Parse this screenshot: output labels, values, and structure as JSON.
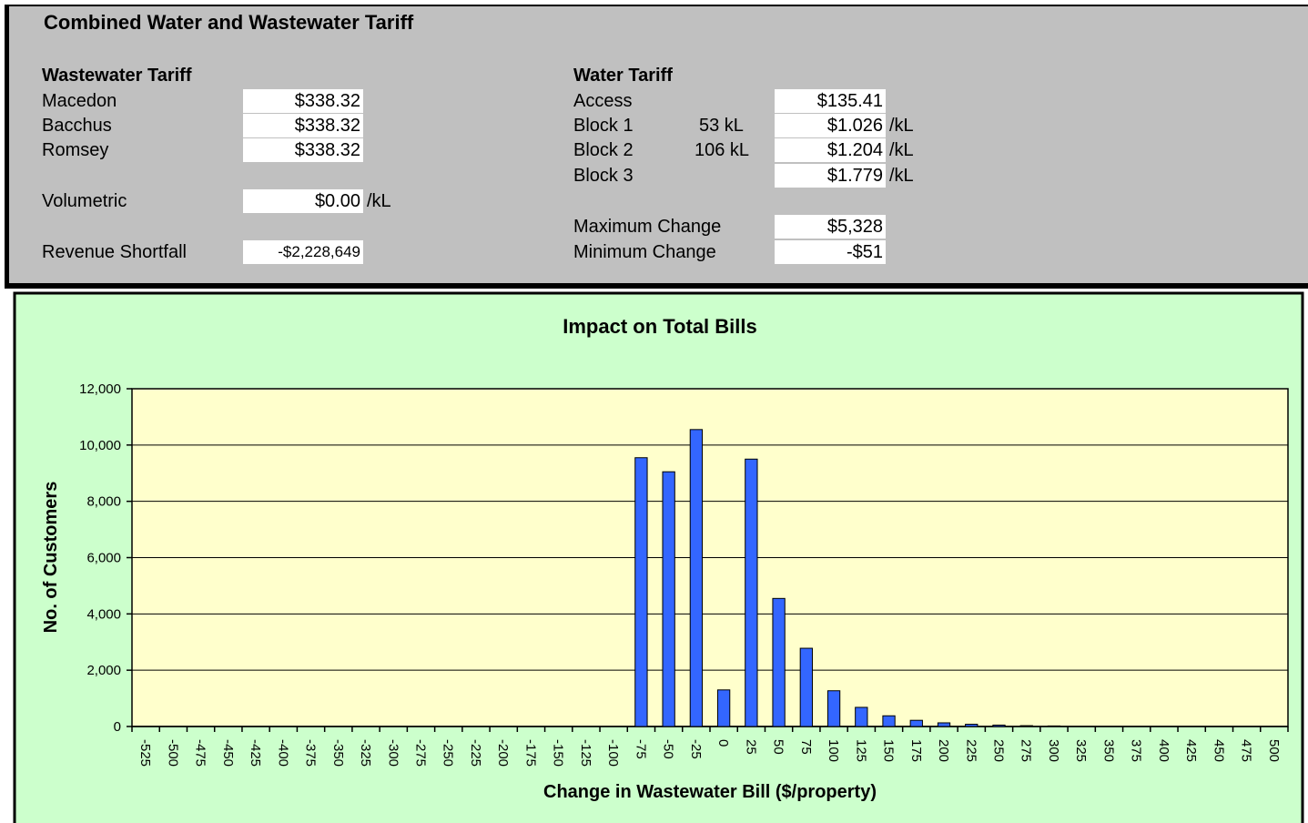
{
  "panel": {
    "title": "Combined Water and Wastewater Tariff",
    "wastewater": {
      "heading": "Wastewater Tariff",
      "rows": [
        {
          "label": "Macedon",
          "value": "$338.32"
        },
        {
          "label": "Bacchus",
          "value": "$338.32"
        },
        {
          "label": "Romsey",
          "value": "$338.32"
        }
      ],
      "volumetric": {
        "label": "Volumetric",
        "value": "$0.00",
        "unit": "/kL"
      },
      "shortfall": {
        "label": "Revenue Shortfall",
        "value": "-$2,228,649"
      }
    },
    "water": {
      "heading": "Water Tariff",
      "access": {
        "label": "Access",
        "value": "$135.41"
      },
      "blocks": [
        {
          "label": "Block 1",
          "size": "53 kL",
          "value": "$1.026",
          "unit": "/kL"
        },
        {
          "label": "Block 2",
          "size": "106 kL",
          "value": "$1.204",
          "unit": "/kL"
        },
        {
          "label": "Block 3",
          "value": "$1.779",
          "unit": "/kL"
        }
      ],
      "max_change": {
        "label": "Maximum Change",
        "value": "$5,328"
      },
      "min_change": {
        "label": "Minimum Change",
        "value": "-$51"
      }
    }
  },
  "chart_data": {
    "type": "bar",
    "title": "Impact on Total Bills",
    "x_label": "Change in Wastewater Bill ($/property)",
    "y_label": "No. of Customers",
    "categories": [
      "-525",
      "-500",
      "-475",
      "-450",
      "-425",
      "-400",
      "-375",
      "-350",
      "-325",
      "-300",
      "-275",
      "-250",
      "-225",
      "-200",
      "-175",
      "-150",
      "-125",
      "-100",
      "-75",
      "-50",
      "-25",
      "0",
      "25",
      "50",
      "75",
      "100",
      "125",
      "150",
      "175",
      "200",
      "225",
      "250",
      "275",
      "300",
      "325",
      "350",
      "375",
      "400",
      "425",
      "450",
      "475",
      "500"
    ],
    "values": [
      0,
      0,
      0,
      0,
      0,
      0,
      0,
      0,
      0,
      0,
      0,
      0,
      0,
      0,
      0,
      0,
      0,
      0,
      9550,
      9050,
      10550,
      1300,
      9500,
      4550,
      2780,
      1270,
      680,
      380,
      220,
      130,
      80,
      50,
      30,
      20,
      0,
      0,
      0,
      0,
      0,
      0,
      0,
      0
    ],
    "color": "#3366ff",
    "ylim": [
      0,
      12000
    ],
    "yticks": [
      0,
      {
        "value": 2000,
        "label": "2,000"
      },
      {
        "value": 4000,
        "label": "4,000"
      },
      {
        "value": 6000,
        "label": "6,000"
      },
      {
        "value": 8000,
        "label": "8,000"
      },
      {
        "value": 10000,
        "label": "10,000"
      },
      {
        "value": 12000,
        "label": "12,000"
      }
    ],
    "grid": true
  }
}
